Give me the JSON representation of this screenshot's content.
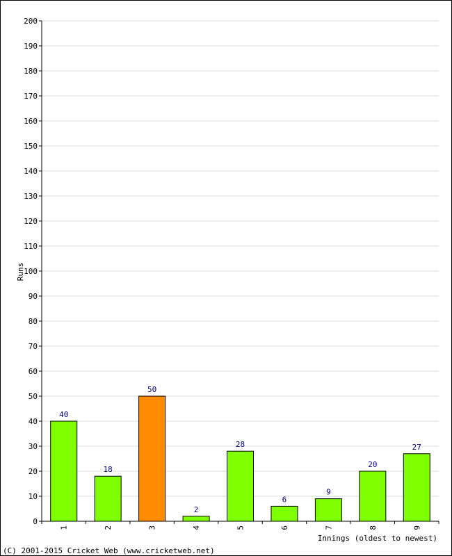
{
  "chart_data": {
    "type": "bar",
    "categories": [
      "1",
      "2",
      "3",
      "4",
      "5",
      "6",
      "7",
      "8",
      "9"
    ],
    "values": [
      40,
      18,
      50,
      2,
      28,
      6,
      9,
      20,
      27
    ],
    "highlight_index": 2,
    "colors": {
      "bar": "#80ff00",
      "highlight": "#ff8c00",
      "value_label": "#000080",
      "grid": "#d8d8d8",
      "axis": "#000000"
    },
    "xlabel": "Innings (oldest to newest)",
    "ylabel": "Runs",
    "ylim": [
      0,
      200
    ],
    "ytick_step": 10,
    "grid": true
  },
  "footer": {
    "copyright": "(C) 2001-2015 Cricket Web (www.cricketweb.net)"
  }
}
